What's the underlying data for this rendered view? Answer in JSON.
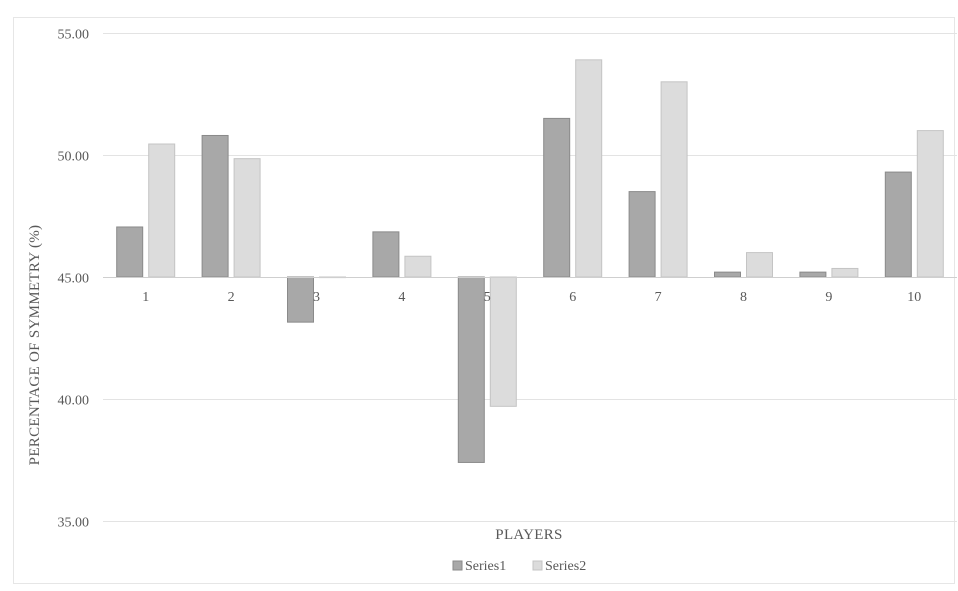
{
  "chart_data": {
    "type": "bar",
    "title": "",
    "xlabel": "PLAYERS",
    "ylabel": "PERCENTAGE OF SYMMETRY (%)",
    "categories": [
      "1",
      "2",
      "3",
      "4",
      "5",
      "6",
      "7",
      "8",
      "9",
      "10"
    ],
    "baseline": 45,
    "ylim": [
      35,
      55
    ],
    "yticks": [
      "35.00",
      "40.00",
      "45.00",
      "50.00",
      "55.00"
    ],
    "grid": true,
    "legend_position": "bottom",
    "series": [
      {
        "name": "Series1",
        "color": "#a8a8a8",
        "stroke": "#8a8a8a",
        "values": [
          47.05,
          50.8,
          43.15,
          46.85,
          37.4,
          51.5,
          48.5,
          45.2,
          45.2,
          49.3
        ]
      },
      {
        "name": "Series2",
        "color": "#dcdcdc",
        "stroke": "#c4c4c4",
        "values": [
          50.45,
          49.85,
          45.0,
          45.85,
          39.7,
          53.9,
          53.0,
          46.0,
          45.35,
          51.0
        ]
      }
    ]
  }
}
